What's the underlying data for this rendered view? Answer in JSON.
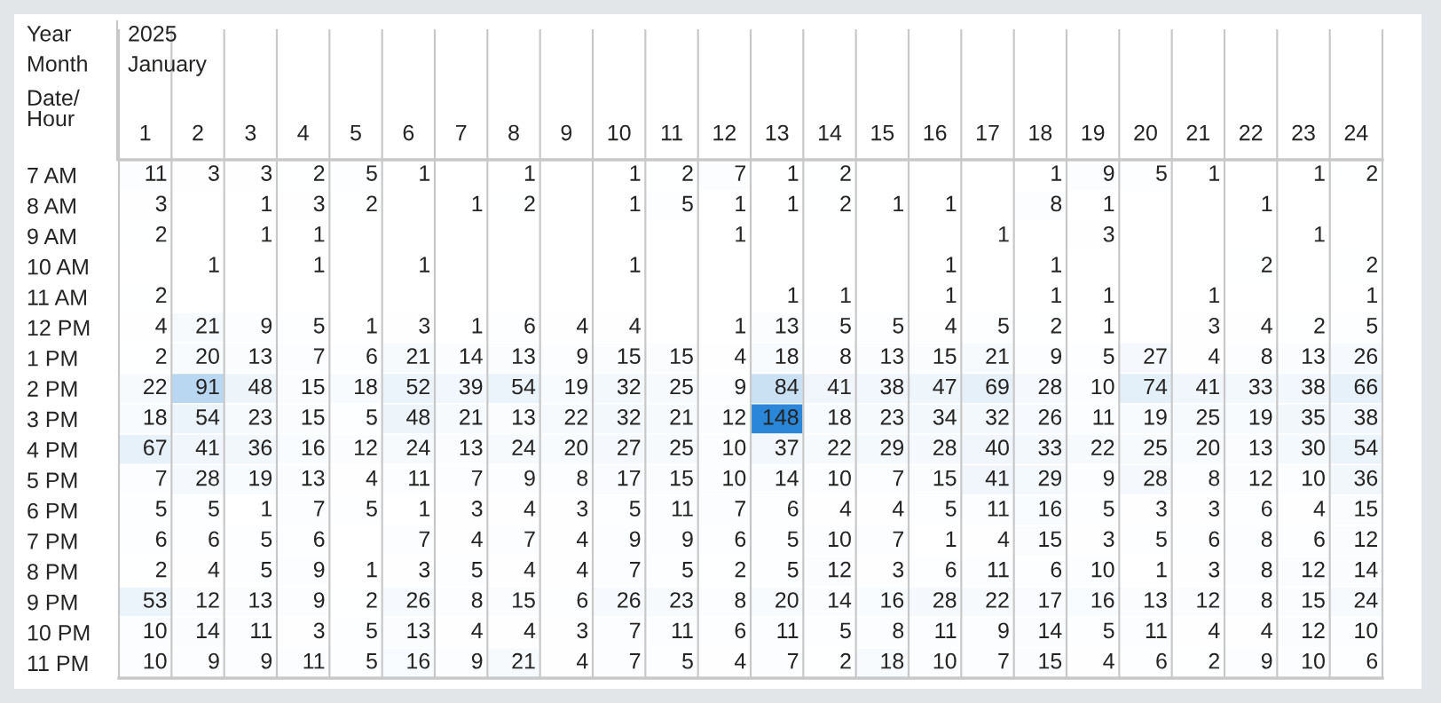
{
  "chart_data": {
    "type": "heatmap",
    "title": "2025",
    "subtitle": "January",
    "data_labels": true,
    "annotations": [
      "Year",
      "Month",
      "Date/\nHour"
    ],
    "categories": [
      "1",
      "2",
      "3",
      "4",
      "5",
      "6",
      "7",
      "8",
      "9",
      "10",
      "11",
      "12",
      "13",
      "14",
      "15",
      "16",
      "17",
      "18",
      "19",
      "20",
      "21",
      "22",
      "23",
      "24"
    ],
    "y_categories": [
      "7 AM",
      "8 AM",
      "9 AM",
      "10 AM",
      "11 AM",
      "12 PM",
      "1 PM",
      "2 PM",
      "3 PM",
      "4 PM",
      "5 PM",
      "6 PM",
      "7 PM",
      "8 PM",
      "9 PM",
      "10 PM",
      "11 PM"
    ],
    "cells": [
      [
        11,
        3,
        3,
        2,
        5,
        1,
        null,
        1,
        null,
        1,
        2,
        7,
        1,
        2,
        null,
        null,
        null,
        1,
        9,
        5,
        1,
        null,
        1,
        2
      ],
      [
        3,
        null,
        1,
        3,
        2,
        null,
        1,
        2,
        null,
        1,
        5,
        1,
        1,
        2,
        1,
        1,
        null,
        8,
        1,
        null,
        null,
        1,
        null,
        null
      ],
      [
        2,
        null,
        1,
        1,
        null,
        null,
        null,
        null,
        null,
        null,
        null,
        1,
        null,
        null,
        null,
        null,
        1,
        null,
        3,
        null,
        null,
        null,
        1,
        null
      ],
      [
        null,
        1,
        null,
        1,
        null,
        1,
        null,
        null,
        null,
        1,
        null,
        null,
        null,
        null,
        null,
        1,
        null,
        1,
        null,
        null,
        null,
        2,
        null,
        2
      ],
      [
        2,
        null,
        null,
        null,
        null,
        null,
        null,
        null,
        null,
        null,
        null,
        null,
        1,
        1,
        null,
        1,
        null,
        1,
        1,
        null,
        1,
        null,
        null,
        1
      ],
      [
        4,
        21,
        9,
        5,
        1,
        3,
        1,
        6,
        4,
        4,
        null,
        1,
        13,
        5,
        5,
        4,
        5,
        2,
        1,
        null,
        3,
        4,
        2,
        5
      ],
      [
        2,
        20,
        13,
        7,
        6,
        21,
        14,
        13,
        9,
        15,
        15,
        4,
        18,
        8,
        13,
        15,
        21,
        9,
        5,
        27,
        4,
        8,
        13,
        26
      ],
      [
        22,
        91,
        48,
        15,
        18,
        52,
        39,
        54,
        19,
        32,
        25,
        9,
        84,
        41,
        38,
        47,
        69,
        28,
        10,
        74,
        41,
        33,
        38,
        66
      ],
      [
        18,
        54,
        23,
        15,
        5,
        48,
        21,
        13,
        22,
        32,
        21,
        12,
        148,
        18,
        23,
        34,
        32,
        26,
        11,
        19,
        25,
        19,
        35,
        38
      ],
      [
        67,
        41,
        36,
        16,
        12,
        24,
        13,
        24,
        20,
        27,
        25,
        10,
        37,
        22,
        29,
        28,
        40,
        33,
        22,
        25,
        20,
        13,
        30,
        54
      ],
      [
        7,
        28,
        19,
        13,
        4,
        11,
        7,
        9,
        8,
        17,
        15,
        10,
        14,
        10,
        7,
        15,
        41,
        29,
        9,
        28,
        8,
        12,
        10,
        36
      ],
      [
        5,
        5,
        1,
        7,
        5,
        1,
        3,
        4,
        3,
        5,
        11,
        7,
        6,
        4,
        4,
        5,
        11,
        16,
        5,
        3,
        3,
        6,
        4,
        15
      ],
      [
        6,
        6,
        5,
        6,
        null,
        7,
        4,
        7,
        4,
        9,
        9,
        6,
        5,
        10,
        7,
        1,
        4,
        15,
        3,
        5,
        6,
        8,
        6,
        12
      ],
      [
        2,
        4,
        5,
        9,
        1,
        3,
        5,
        4,
        4,
        7,
        5,
        2,
        5,
        12,
        3,
        6,
        11,
        6,
        10,
        1,
        3,
        8,
        12,
        14
      ],
      [
        53,
        12,
        13,
        9,
        2,
        26,
        8,
        15,
        6,
        26,
        23,
        8,
        20,
        14,
        16,
        28,
        22,
        17,
        16,
        13,
        12,
        8,
        15,
        24
      ],
      [
        10,
        14,
        11,
        3,
        5,
        13,
        4,
        4,
        3,
        7,
        11,
        6,
        11,
        5,
        8,
        11,
        9,
        14,
        5,
        11,
        4,
        4,
        12,
        10
      ],
      [
        10,
        9,
        9,
        11,
        5,
        16,
        9,
        21,
        4,
        7,
        5,
        4,
        7,
        2,
        18,
        10,
        7,
        15,
        4,
        6,
        2,
        9,
        10,
        6
      ]
    ]
  }
}
